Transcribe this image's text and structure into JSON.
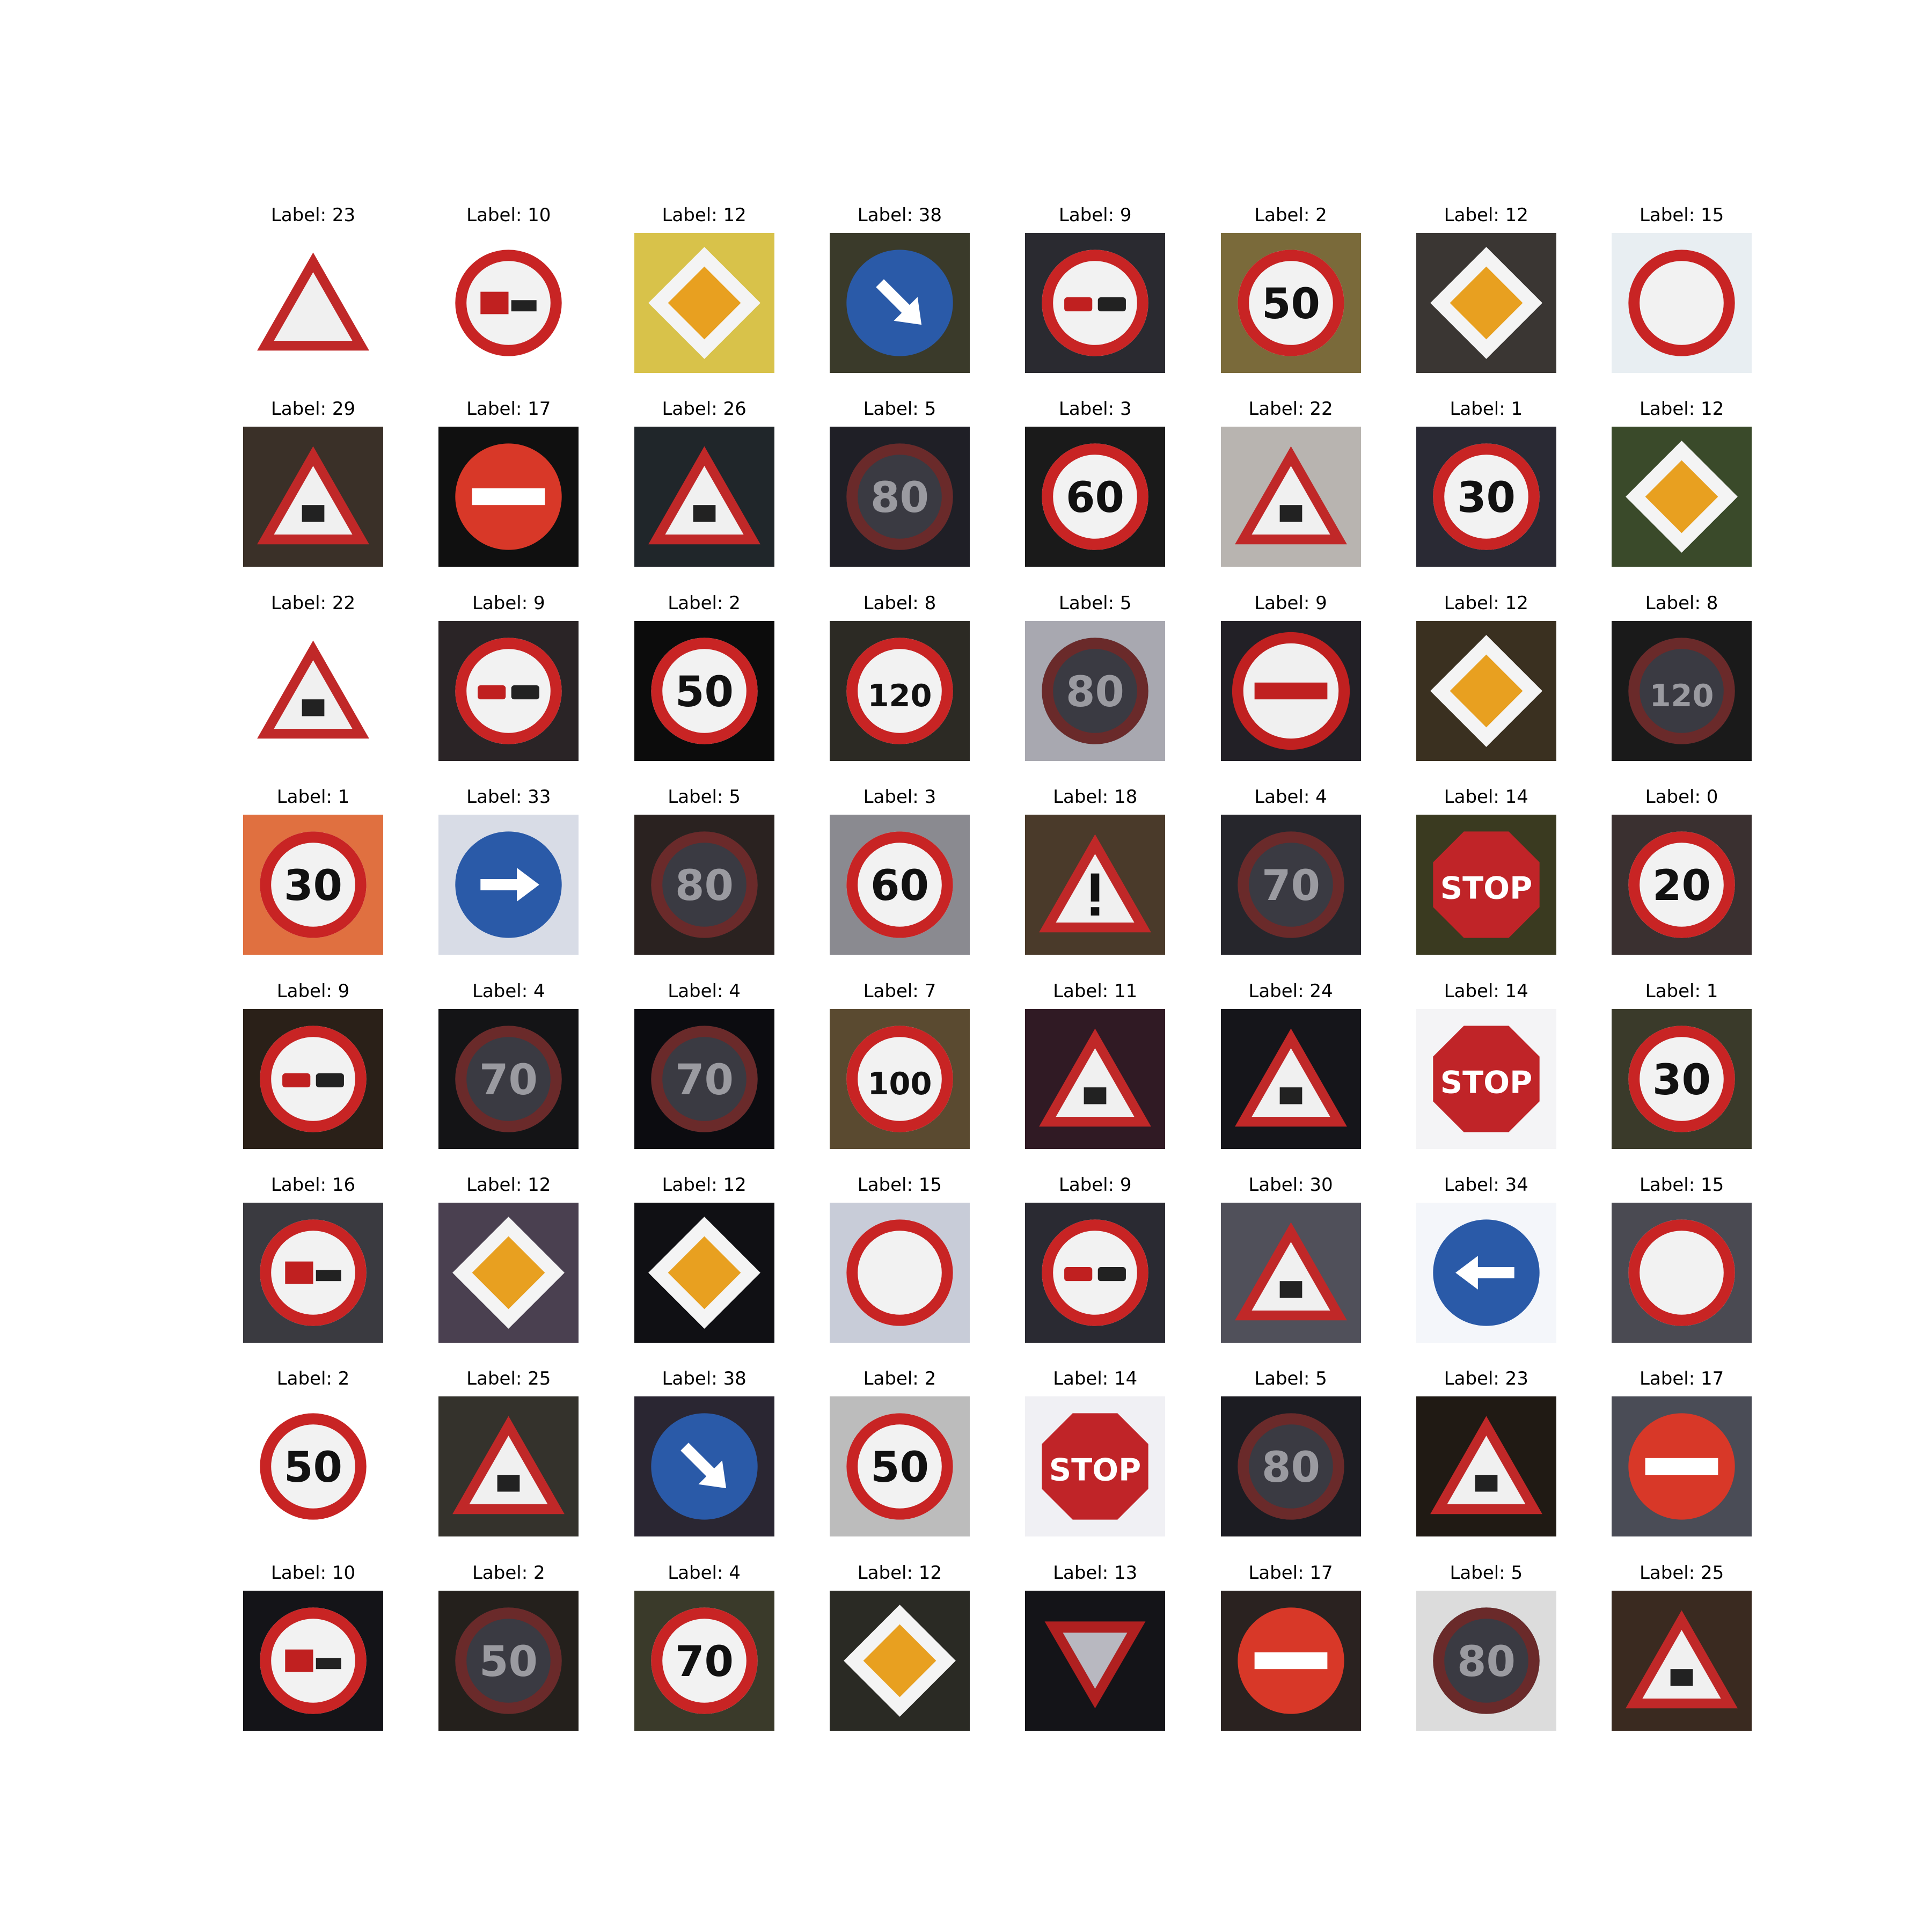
{
  "figure": {
    "rows": 8,
    "cols": 8,
    "label_prefix": "Label: "
  },
  "images": [
    {
      "label": "23",
      "sign": "triangle-warning",
      "bg": "#ffffff",
      "glyph": ""
    },
    {
      "label": "10",
      "sign": "round-prohibition",
      "bg": "#ffffff",
      "glyph": "truck"
    },
    {
      "label": "12",
      "sign": "priority-diamond",
      "bg": "#d8c24a",
      "glyph": ""
    },
    {
      "label": "38",
      "sign": "blue-circle",
      "bg": "#3a3a2a",
      "glyph": "arrow-down-right"
    },
    {
      "label": "9",
      "sign": "round-prohibition",
      "bg": "#2a2a30",
      "glyph": "cars"
    },
    {
      "label": "2",
      "sign": "speed-limit",
      "bg": "#7a6a3a",
      "glyph": "50"
    },
    {
      "label": "12",
      "sign": "priority-diamond",
      "bg": "#3a3633",
      "glyph": ""
    },
    {
      "label": "15",
      "sign": "round-empty",
      "bg": "#e8eef2",
      "glyph": ""
    },
    {
      "label": "29",
      "sign": "triangle-warning",
      "bg": "#3a3028",
      "glyph": "bike"
    },
    {
      "label": "17",
      "sign": "no-entry",
      "bg": "#101010",
      "glyph": ""
    },
    {
      "label": "26",
      "sign": "triangle-warning",
      "bg": "#20262a",
      "glyph": "light"
    },
    {
      "label": "5",
      "sign": "speed-limit-dark",
      "bg": "#1f1f26",
      "glyph": "80"
    },
    {
      "label": "3",
      "sign": "speed-limit",
      "bg": "#1a1a1a",
      "glyph": "60"
    },
    {
      "label": "22",
      "sign": "triangle-warning",
      "bg": "#b8b4b0",
      "glyph": "bump"
    },
    {
      "label": "1",
      "sign": "speed-limit",
      "bg": "#2a2a34",
      "glyph": "30"
    },
    {
      "label": "12",
      "sign": "priority-diamond",
      "bg": "#3a4a2a",
      "glyph": ""
    },
    {
      "label": "22",
      "sign": "triangle-warning",
      "bg": "#ffffff",
      "glyph": "bump"
    },
    {
      "label": "9",
      "sign": "round-prohibition",
      "bg": "#2a2426",
      "glyph": "cars"
    },
    {
      "label": "2",
      "sign": "speed-limit",
      "bg": "#0c0c0c",
      "glyph": "50"
    },
    {
      "label": "8",
      "sign": "speed-limit",
      "bg": "#2c2a24",
      "glyph": "120"
    },
    {
      "label": "5",
      "sign": "speed-limit-dark",
      "bg": "#a8a8b0",
      "glyph": "80"
    },
    {
      "label": "9",
      "sign": "no-entry-light",
      "bg": "#222026",
      "glyph": ""
    },
    {
      "label": "12",
      "sign": "priority-diamond",
      "bg": "#3a3020",
      "glyph": ""
    },
    {
      "label": "8",
      "sign": "speed-limit-dark",
      "bg": "#1a1a1a",
      "glyph": "120"
    },
    {
      "label": "1",
      "sign": "speed-limit",
      "bg": "#e07040",
      "glyph": "30"
    },
    {
      "label": "33",
      "sign": "blue-circle",
      "bg": "#d8dce6",
      "glyph": "arrow-right"
    },
    {
      "label": "5",
      "sign": "speed-limit-dark",
      "bg": "#2a2220",
      "glyph": "80"
    },
    {
      "label": "3",
      "sign": "speed-limit",
      "bg": "#8a8a90",
      "glyph": "60"
    },
    {
      "label": "18",
      "sign": "triangle-warning",
      "bg": "#4a3a2a",
      "glyph": "!"
    },
    {
      "label": "4",
      "sign": "speed-limit-dark",
      "bg": "#26262c",
      "glyph": "70"
    },
    {
      "label": "14",
      "sign": "stop",
      "bg": "#3a3a20",
      "glyph": "STOP"
    },
    {
      "label": "0",
      "sign": "speed-limit",
      "bg": "#3a3030",
      "glyph": "20"
    },
    {
      "label": "9",
      "sign": "round-prohibition",
      "bg": "#2a2018",
      "glyph": "cars"
    },
    {
      "label": "4",
      "sign": "speed-limit-dark",
      "bg": "#141416",
      "glyph": "70"
    },
    {
      "label": "4",
      "sign": "speed-limit-dark",
      "bg": "#0c0c10",
      "glyph": "70"
    },
    {
      "label": "7",
      "sign": "speed-limit",
      "bg": "#5a4a30",
      "glyph": "100"
    },
    {
      "label": "11",
      "sign": "triangle-warning",
      "bg": "#301a24",
      "glyph": "junction"
    },
    {
      "label": "24",
      "sign": "triangle-warning",
      "bg": "#15151a",
      "glyph": "narrow"
    },
    {
      "label": "14",
      "sign": "stop",
      "bg": "#f4f4f6",
      "glyph": "STOP"
    },
    {
      "label": "1",
      "sign": "speed-limit",
      "bg": "#3a3a2a",
      "glyph": "30"
    },
    {
      "label": "16",
      "sign": "round-prohibition",
      "bg": "#3a3a40",
      "glyph": "truck"
    },
    {
      "label": "12",
      "sign": "priority-diamond",
      "bg": "#4a4050",
      "glyph": ""
    },
    {
      "label": "12",
      "sign": "priority-diamond",
      "bg": "#101014",
      "glyph": ""
    },
    {
      "label": "15",
      "sign": "round-empty",
      "bg": "#c8ccd8",
      "glyph": ""
    },
    {
      "label": "9",
      "sign": "round-prohibition",
      "bg": "#2a2a32",
      "glyph": "cars"
    },
    {
      "label": "30",
      "sign": "triangle-warning",
      "bg": "#50505a",
      "glyph": "snow"
    },
    {
      "label": "34",
      "sign": "blue-circle",
      "bg": "#f4f6fa",
      "glyph": "arrow-left"
    },
    {
      "label": "15",
      "sign": "round-empty",
      "bg": "#4a4a52",
      "glyph": ""
    },
    {
      "label": "2",
      "sign": "speed-limit",
      "bg": "#ffffff",
      "glyph": "50"
    },
    {
      "label": "25",
      "sign": "triangle-warning",
      "bg": "#34322c",
      "glyph": "worker"
    },
    {
      "label": "38",
      "sign": "blue-circle",
      "bg": "#2a2632",
      "glyph": "arrow-down-right"
    },
    {
      "label": "2",
      "sign": "speed-limit",
      "bg": "#bcbcbc",
      "glyph": "50"
    },
    {
      "label": "14",
      "sign": "stop",
      "bg": "#f0f0f4",
      "glyph": "STOP"
    },
    {
      "label": "5",
      "sign": "speed-limit-dark",
      "bg": "#1c1c22",
      "glyph": "80"
    },
    {
      "label": "23",
      "sign": "triangle-warning",
      "bg": "#201a14",
      "glyph": "slippery"
    },
    {
      "label": "17",
      "sign": "no-entry",
      "bg": "#4a4c56",
      "glyph": ""
    },
    {
      "label": "10",
      "sign": "round-prohibition",
      "bg": "#141418",
      "glyph": "truck"
    },
    {
      "label": "2",
      "sign": "speed-limit-dark",
      "bg": "#24201c",
      "glyph": "50"
    },
    {
      "label": "4",
      "sign": "speed-limit",
      "bg": "#3a3a2a",
      "glyph": "70"
    },
    {
      "label": "12",
      "sign": "priority-diamond",
      "bg": "#2a2a24",
      "glyph": ""
    },
    {
      "label": "13",
      "sign": "yield",
      "bg": "#141418",
      "glyph": ""
    },
    {
      "label": "17",
      "sign": "no-entry",
      "bg": "#2a2220",
      "glyph": ""
    },
    {
      "label": "5",
      "sign": "speed-limit-dark",
      "bg": "#dcdcdc",
      "glyph": "80"
    },
    {
      "label": "25",
      "sign": "triangle-warning",
      "bg": "#3a2a20",
      "glyph": "worker"
    }
  ]
}
